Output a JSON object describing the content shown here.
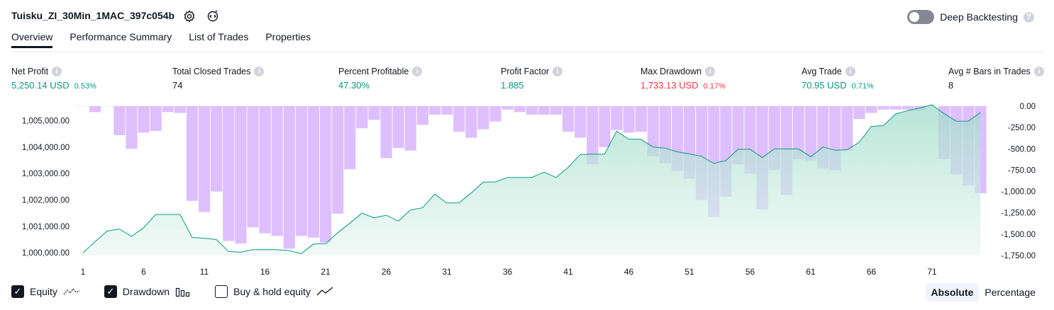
{
  "header": {
    "strategy_name": "Tuisku_ZI_30Min_1MAC_397c054b",
    "settings_icon": "gear-icon",
    "source_icon": "code-icon",
    "deep_backtesting_label": "Deep Backtesting",
    "help_icon": "question-icon",
    "help_glyph": "?"
  },
  "tabs": [
    {
      "label": "Overview",
      "active": true
    },
    {
      "label": "Performance Summary",
      "active": false
    },
    {
      "label": "List of Trades",
      "active": false
    },
    {
      "label": "Properties",
      "active": false
    }
  ],
  "stats": [
    {
      "label": "Net Profit",
      "value": "5,250.14 USD",
      "pct": "0.53%",
      "color": "#089981"
    },
    {
      "label": "Total Closed Trades",
      "value": "74",
      "pct": "",
      "color": "#131722"
    },
    {
      "label": "Percent Profitable",
      "value": "47.30%",
      "pct": "",
      "color": "#089981"
    },
    {
      "label": "Profit Factor",
      "value": "1.885",
      "pct": "",
      "color": "#089981"
    },
    {
      "label": "Max Drawdown",
      "value": "1,733.13 USD",
      "pct": "0.17%",
      "color": "#f23645"
    },
    {
      "label": "Avg Trade",
      "value": "70.95 USD",
      "pct": "0.71%",
      "color": "#089981"
    },
    {
      "label": "Avg # Bars in Trades",
      "value": "8",
      "pct": "",
      "color": "#131722"
    }
  ],
  "info_glyph": "i",
  "chart_data": {
    "type": "area",
    "x_ticks": [
      "1",
      "6",
      "11",
      "16",
      "21",
      "26",
      "31",
      "36",
      "41",
      "46",
      "51",
      "56",
      "61",
      "66",
      "71"
    ],
    "left_axis": {
      "ticks": [
        "1,005,000.00",
        "1,004,000.00",
        "1,003,000.00",
        "1,002,000.00",
        "1,001,000.00",
        "1,000,000.00"
      ],
      "tick_values": [
        1005000,
        1004000,
        1003000,
        1002000,
        1001000,
        1000000
      ],
      "range": [
        999950,
        1005600
      ]
    },
    "right_axis": {
      "ticks": [
        "0.00",
        "-250.00",
        "-500.00",
        "-750.00",
        "-1,000.00",
        "-1,250.00",
        "-1,500.00",
        "-1,750.00"
      ],
      "tick_values": [
        0,
        -250,
        -500,
        -750,
        -1000,
        -1250,
        -1500,
        -1750
      ],
      "range": [
        -1750,
        0
      ]
    },
    "series": [
      {
        "name": "Equity",
        "color": "#089981",
        "values": [
          1000000,
          1000420,
          1000820,
          1000900,
          1000620,
          1000950,
          1001450,
          1001450,
          1001450,
          1000580,
          1000550,
          1000500,
          1000050,
          1000020,
          1000120,
          1000120,
          1000120,
          1000080,
          999970,
          1000330,
          1000340,
          1000760,
          1001120,
          1001500,
          1001320,
          1001420,
          1001200,
          1001620,
          1001700,
          1002220,
          1001880,
          1001890,
          1002260,
          1002670,
          1002680,
          1002850,
          1002850,
          1002850,
          1003050,
          1002850,
          1003230,
          1003720,
          1003730,
          1003730,
          1004600,
          1004300,
          1004290,
          1004000,
          1003960,
          1003820,
          1003740,
          1003650,
          1003380,
          1003490,
          1003910,
          1003920,
          1003600,
          1003930,
          1003930,
          1003930,
          1003630,
          1004000,
          1003880,
          1003900,
          1004180,
          1004780,
          1004810,
          1005250,
          1005380,
          1005480,
          1005600,
          1005260,
          1004980,
          1004980,
          1005310
        ]
      },
      {
        "name": "Drawdown",
        "color": "#c77dff",
        "values": [
          0,
          -70,
          0,
          -340,
          -500,
          -310,
          -290,
          -70,
          -80,
          -1110,
          -1240,
          -1000,
          -1580,
          -1610,
          -1420,
          -1490,
          -1520,
          -1670,
          -1520,
          -1540,
          -1600,
          -1260,
          -740,
          -260,
          -160,
          -610,
          -490,
          -520,
          -220,
          -100,
          -100,
          -300,
          -370,
          -270,
          -180,
          -40,
          -70,
          -100,
          -100,
          -100,
          -300,
          -370,
          -680,
          -480,
          -280,
          -310,
          -300,
          -590,
          -670,
          -760,
          -850,
          -1100,
          -1300,
          -1060,
          -680,
          -790,
          -1210,
          -750,
          -1040,
          -620,
          -640,
          -730,
          -750,
          -520,
          -150,
          -80,
          -40,
          -40,
          -40,
          -50,
          0,
          -620,
          -800,
          -930,
          -1020
        ]
      },
      {
        "name": "Buy & hold equity",
        "color": "#131722",
        "values": []
      }
    ]
  },
  "legend": [
    {
      "label": "Equity",
      "checked": true,
      "icon": "equity-line-icon"
    },
    {
      "label": "Drawdown",
      "checked": true,
      "icon": "drawdown-bars-icon"
    },
    {
      "label": "Buy & hold equity",
      "checked": false,
      "icon": "buy-hold-line-icon"
    }
  ],
  "checkmark": "✓",
  "scale_toggle": [
    {
      "label": "Absolute",
      "active": true
    },
    {
      "label": "Percentage",
      "active": false
    }
  ]
}
